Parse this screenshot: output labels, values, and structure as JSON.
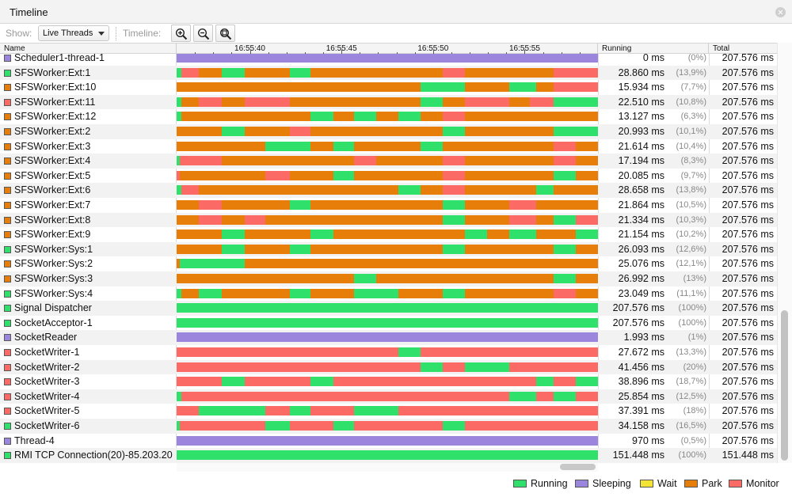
{
  "window": {
    "title": "Timeline"
  },
  "toolbar": {
    "show_label": "Show:",
    "show_value": "Live Threads",
    "timeline_label": "Timeline:"
  },
  "colors": {
    "Running": "#2fe06a",
    "Sleeping": "#9b85dd",
    "Wait": "#f2e335",
    "Park": "#e77e09",
    "Monitor": "#fb6a65"
  },
  "columns": {
    "name": "Name",
    "running": "Running",
    "total": "Total"
  },
  "timeline": {
    "start": 36,
    "end": 59,
    "ticks": [
      {
        "label": "16:55:40",
        "time": 40
      },
      {
        "label": "16:55:45",
        "time": 45
      },
      {
        "label": "16:55:50",
        "time": 50
      },
      {
        "label": "16:55:55",
        "time": 55
      }
    ]
  },
  "threads": [
    {
      "name": "Scheduler1-thread-1",
      "state": "Sleeping",
      "running": "0 ms",
      "pct": "(0%)",
      "total": "207.576 ms",
      "segments": [
        [
          "Sleeping",
          0,
          1
        ]
      ]
    },
    {
      "name": "SFSWorker:Ext:1",
      "state": "Running",
      "running": "28.860 ms",
      "pct": "(13,9%)",
      "total": "207.576 ms",
      "segments": [
        [
          "Running",
          0,
          0.011
        ],
        [
          "Monitor",
          0.011,
          0.053
        ],
        [
          "Park",
          0.053,
          0.107
        ],
        [
          "Running",
          0.107,
          0.161
        ],
        [
          "Park",
          0.161,
          0.268
        ],
        [
          "Running",
          0.268,
          0.318
        ],
        [
          "Park",
          0.318,
          0.632
        ],
        [
          "Monitor",
          0.632,
          0.685
        ],
        [
          "Park",
          0.685,
          0.895
        ],
        [
          "Monitor",
          0.895,
          1
        ]
      ]
    },
    {
      "name": "SFSWorker:Ext:10",
      "state": "Park",
      "running": "15.934 ms",
      "pct": "(7,7%)",
      "total": "207.576 ms",
      "segments": [
        [
          "Park",
          0,
          0.579
        ],
        [
          "Running",
          0.579,
          0.685
        ],
        [
          "Park",
          0.685,
          0.79
        ],
        [
          "Running",
          0.79,
          0.853
        ],
        [
          "Park",
          0.853,
          0.895
        ],
        [
          "Monitor",
          0.895,
          1
        ]
      ]
    },
    {
      "name": "SFSWorker:Ext:11",
      "state": "Monitor",
      "running": "22.510 ms",
      "pct": "(10,8%)",
      "total": "207.576 ms",
      "segments": [
        [
          "Running",
          0,
          0.011
        ],
        [
          "Park",
          0.011,
          0.053
        ],
        [
          "Monitor",
          0.053,
          0.107
        ],
        [
          "Park",
          0.107,
          0.161
        ],
        [
          "Monitor",
          0.161,
          0.268
        ],
        [
          "Park",
          0.268,
          0.579
        ],
        [
          "Running",
          0.579,
          0.632
        ],
        [
          "Park",
          0.632,
          0.685
        ],
        [
          "Monitor",
          0.685,
          0.79
        ],
        [
          "Park",
          0.79,
          0.838
        ],
        [
          "Monitor",
          0.838,
          0.895
        ],
        [
          "Running",
          0.895,
          1
        ]
      ]
    },
    {
      "name": "SFSWorker:Ext:12",
      "state": "Park",
      "running": "13.127 ms",
      "pct": "(6,3%)",
      "total": "207.576 ms",
      "segments": [
        [
          "Running",
          0,
          0.011
        ],
        [
          "Park",
          0.011,
          0.318
        ],
        [
          "Running",
          0.318,
          0.372
        ],
        [
          "Park",
          0.372,
          0.421
        ],
        [
          "Running",
          0.421,
          0.474
        ],
        [
          "Park",
          0.474,
          0.526
        ],
        [
          "Running",
          0.526,
          0.579
        ],
        [
          "Park",
          0.579,
          0.632
        ],
        [
          "Monitor",
          0.632,
          0.685
        ],
        [
          "Park",
          0.685,
          1
        ]
      ]
    },
    {
      "name": "SFSWorker:Ext:2",
      "state": "Park",
      "running": "20.993 ms",
      "pct": "(10,1%)",
      "total": "207.576 ms",
      "segments": [
        [
          "Park",
          0,
          0.107
        ],
        [
          "Running",
          0.107,
          0.161
        ],
        [
          "Park",
          0.161,
          0.268
        ],
        [
          "Monitor",
          0.268,
          0.318
        ],
        [
          "Park",
          0.318,
          0.632
        ],
        [
          "Running",
          0.632,
          0.685
        ],
        [
          "Park",
          0.685,
          0.895
        ],
        [
          "Running",
          0.895,
          1
        ]
      ]
    },
    {
      "name": "SFSWorker:Ext:3",
      "state": "Park",
      "running": "21.614 ms",
      "pct": "(10,4%)",
      "total": "207.576 ms",
      "segments": [
        [
          "Park",
          0,
          0.211
        ],
        [
          "Running",
          0.211,
          0.318
        ],
        [
          "Park",
          0.318,
          0.372
        ],
        [
          "Running",
          0.372,
          0.421
        ],
        [
          "Park",
          0.421,
          0.579
        ],
        [
          "Running",
          0.579,
          0.632
        ],
        [
          "Park",
          0.632,
          0.895
        ],
        [
          "Monitor",
          0.895,
          0.947
        ],
        [
          "Park",
          0.947,
          1
        ]
      ]
    },
    {
      "name": "SFSWorker:Ext:4",
      "state": "Park",
      "running": "17.194 ms",
      "pct": "(8,3%)",
      "total": "207.576 ms",
      "segments": [
        [
          "Running",
          0,
          0.008
        ],
        [
          "Monitor",
          0.008,
          0.107
        ],
        [
          "Park",
          0.107,
          0.421
        ],
        [
          "Monitor",
          0.421,
          0.474
        ],
        [
          "Park",
          0.474,
          0.632
        ],
        [
          "Monitor",
          0.632,
          0.685
        ],
        [
          "Park",
          0.685,
          0.895
        ],
        [
          "Monitor",
          0.895,
          0.947
        ],
        [
          "Park",
          0.947,
          1
        ]
      ]
    },
    {
      "name": "SFSWorker:Ext:5",
      "state": "Park",
      "running": "20.085 ms",
      "pct": "(9,7%)",
      "total": "207.576 ms",
      "segments": [
        [
          "Monitor",
          0,
          0.008
        ],
        [
          "Park",
          0.008,
          0.211
        ],
        [
          "Monitor",
          0.211,
          0.268
        ],
        [
          "Park",
          0.268,
          0.372
        ],
        [
          "Running",
          0.372,
          0.421
        ],
        [
          "Park",
          0.421,
          0.632
        ],
        [
          "Monitor",
          0.632,
          0.685
        ],
        [
          "Park",
          0.685,
          0.895
        ],
        [
          "Running",
          0.895,
          0.947
        ],
        [
          "Park",
          0.947,
          1
        ]
      ]
    },
    {
      "name": "SFSWorker:Ext:6",
      "state": "Park",
      "running": "28.658 ms",
      "pct": "(13,8%)",
      "total": "207.576 ms",
      "segments": [
        [
          "Running",
          0,
          0.011
        ],
        [
          "Monitor",
          0.011,
          0.053
        ],
        [
          "Park",
          0.053,
          0.526
        ],
        [
          "Running",
          0.526,
          0.579
        ],
        [
          "Park",
          0.579,
          0.632
        ],
        [
          "Monitor",
          0.632,
          0.685
        ],
        [
          "Park",
          0.685,
          0.853
        ],
        [
          "Running",
          0.853,
          0.895
        ],
        [
          "Park",
          0.895,
          1
        ]
      ]
    },
    {
      "name": "SFSWorker:Ext:7",
      "state": "Park",
      "running": "21.864 ms",
      "pct": "(10,5%)",
      "total": "207.576 ms",
      "segments": [
        [
          "Park",
          0,
          0.053
        ],
        [
          "Monitor",
          0.053,
          0.107
        ],
        [
          "Park",
          0.107,
          0.268
        ],
        [
          "Running",
          0.268,
          0.318
        ],
        [
          "Park",
          0.318,
          0.632
        ],
        [
          "Running",
          0.632,
          0.685
        ],
        [
          "Park",
          0.685,
          0.79
        ],
        [
          "Monitor",
          0.79,
          0.853
        ],
        [
          "Park",
          0.853,
          1
        ]
      ]
    },
    {
      "name": "SFSWorker:Ext:8",
      "state": "Park",
      "running": "21.334 ms",
      "pct": "(10,3%)",
      "total": "207.576 ms",
      "segments": [
        [
          "Park",
          0,
          0.053
        ],
        [
          "Monitor",
          0.053,
          0.107
        ],
        [
          "Park",
          0.107,
          0.161
        ],
        [
          "Monitor",
          0.161,
          0.211
        ],
        [
          "Park",
          0.211,
          0.632
        ],
        [
          "Running",
          0.632,
          0.685
        ],
        [
          "Park",
          0.685,
          0.79
        ],
        [
          "Monitor",
          0.79,
          0.853
        ],
        [
          "Park",
          0.853,
          0.895
        ],
        [
          "Running",
          0.895,
          0.947
        ],
        [
          "Monitor",
          0.947,
          1
        ]
      ]
    },
    {
      "name": "SFSWorker:Ext:9",
      "state": "Park",
      "running": "21.154 ms",
      "pct": "(10,2%)",
      "total": "207.576 ms",
      "segments": [
        [
          "Park",
          0,
          0.107
        ],
        [
          "Running",
          0.107,
          0.161
        ],
        [
          "Park",
          0.161,
          0.318
        ],
        [
          "Running",
          0.318,
          0.372
        ],
        [
          "Park",
          0.372,
          0.685
        ],
        [
          "Running",
          0.685,
          0.737
        ],
        [
          "Park",
          0.737,
          0.79
        ],
        [
          "Running",
          0.79,
          0.853
        ],
        [
          "Park",
          0.853,
          0.947
        ],
        [
          "Running",
          0.947,
          1
        ]
      ]
    },
    {
      "name": "SFSWorker:Sys:1",
      "state": "Running",
      "running": "26.093 ms",
      "pct": "(12,6%)",
      "total": "207.576 ms",
      "segments": [
        [
          "Park",
          0,
          0.107
        ],
        [
          "Running",
          0.107,
          0.161
        ],
        [
          "Park",
          0.161,
          0.268
        ],
        [
          "Running",
          0.268,
          0.318
        ],
        [
          "Park",
          0.318,
          0.632
        ],
        [
          "Running",
          0.632,
          0.685
        ],
        [
          "Park",
          0.685,
          0.895
        ],
        [
          "Running",
          0.895,
          0.947
        ],
        [
          "Park",
          0.947,
          1
        ]
      ]
    },
    {
      "name": "SFSWorker:Sys:2",
      "state": "Park",
      "running": "25.076 ms",
      "pct": "(12,1%)",
      "total": "207.576 ms",
      "segments": [
        [
          "Park",
          0,
          0.008
        ],
        [
          "Running",
          0.008,
          0.161
        ],
        [
          "Park",
          0.161,
          1
        ]
      ]
    },
    {
      "name": "SFSWorker:Sys:3",
      "state": "Park",
      "running": "26.992 ms",
      "pct": "(13%)",
      "total": "207.576 ms",
      "segments": [
        [
          "Park",
          0,
          0.421
        ],
        [
          "Running",
          0.421,
          0.474
        ],
        [
          "Park",
          0.474,
          0.895
        ],
        [
          "Running",
          0.895,
          0.947
        ],
        [
          "Park",
          0.947,
          1
        ]
      ]
    },
    {
      "name": "SFSWorker:Sys:4",
      "state": "Running",
      "running": "23.049 ms",
      "pct": "(11,1%)",
      "total": "207.576 ms",
      "segments": [
        [
          "Running",
          0,
          0.011
        ],
        [
          "Park",
          0.011,
          0.053
        ],
        [
          "Running",
          0.053,
          0.107
        ],
        [
          "Park",
          0.107,
          0.268
        ],
        [
          "Running",
          0.268,
          0.318
        ],
        [
          "Park",
          0.318,
          0.421
        ],
        [
          "Running",
          0.421,
          0.526
        ],
        [
          "Park",
          0.526,
          0.632
        ],
        [
          "Running",
          0.632,
          0.685
        ],
        [
          "Park",
          0.685,
          0.895
        ],
        [
          "Monitor",
          0.895,
          0.947
        ],
        [
          "Park",
          0.947,
          1
        ]
      ]
    },
    {
      "name": "Signal Dispatcher",
      "state": "Running",
      "running": "207.576 ms",
      "pct": "(100%)",
      "total": "207.576 ms",
      "segments": [
        [
          "Running",
          0,
          1
        ]
      ]
    },
    {
      "name": "SocketAcceptor-1",
      "state": "Running",
      "running": "207.576 ms",
      "pct": "(100%)",
      "total": "207.576 ms",
      "segments": [
        [
          "Running",
          0,
          1
        ]
      ]
    },
    {
      "name": "SocketReader",
      "state": "Sleeping",
      "running": "1.993 ms",
      "pct": "(1%)",
      "total": "207.576 ms",
      "segments": [
        [
          "Sleeping",
          0,
          1
        ]
      ]
    },
    {
      "name": "SocketWriter-1",
      "state": "Monitor",
      "running": "27.672 ms",
      "pct": "(13,3%)",
      "total": "207.576 ms",
      "segments": [
        [
          "Monitor",
          0,
          0.526
        ],
        [
          "Running",
          0.526,
          0.579
        ],
        [
          "Monitor",
          0.579,
          1
        ]
      ]
    },
    {
      "name": "SocketWriter-2",
      "state": "Monitor",
      "running": "41.456 ms",
      "pct": "(20%)",
      "total": "207.576 ms",
      "segments": [
        [
          "Monitor",
          0,
          0.579
        ],
        [
          "Running",
          0.579,
          0.632
        ],
        [
          "Monitor",
          0.632,
          0.685
        ],
        [
          "Running",
          0.685,
          0.79
        ],
        [
          "Monitor",
          0.79,
          1
        ]
      ]
    },
    {
      "name": "SocketWriter-3",
      "state": "Monitor",
      "running": "38.896 ms",
      "pct": "(18,7%)",
      "total": "207.576 ms",
      "segments": [
        [
          "Monitor",
          0,
          0.107
        ],
        [
          "Running",
          0.107,
          0.161
        ],
        [
          "Monitor",
          0.161,
          0.318
        ],
        [
          "Running",
          0.318,
          0.372
        ],
        [
          "Monitor",
          0.372,
          0.853
        ],
        [
          "Running",
          0.853,
          0.895
        ],
        [
          "Monitor",
          0.895,
          0.947
        ],
        [
          "Running",
          0.947,
          1
        ]
      ]
    },
    {
      "name": "SocketWriter-4",
      "state": "Monitor",
      "running": "25.854 ms",
      "pct": "(12,5%)",
      "total": "207.576 ms",
      "segments": [
        [
          "Running",
          0,
          0.011
        ],
        [
          "Monitor",
          0.011,
          0.053
        ],
        [
          "Monitor",
          0.053,
          0.79
        ],
        [
          "Running",
          0.79,
          0.853
        ],
        [
          "Monitor",
          0.853,
          0.895
        ],
        [
          "Running",
          0.895,
          0.947
        ],
        [
          "Monitor",
          0.947,
          1
        ]
      ]
    },
    {
      "name": "SocketWriter-5",
      "state": "Monitor",
      "running": "37.391 ms",
      "pct": "(18%)",
      "total": "207.576 ms",
      "segments": [
        [
          "Monitor",
          0,
          0.053
        ],
        [
          "Running",
          0.053,
          0.211
        ],
        [
          "Monitor",
          0.211,
          0.268
        ],
        [
          "Running",
          0.268,
          0.318
        ],
        [
          "Monitor",
          0.318,
          0.421
        ],
        [
          "Running",
          0.421,
          0.526
        ],
        [
          "Monitor",
          0.526,
          1
        ]
      ]
    },
    {
      "name": "SocketWriter-6",
      "state": "Running",
      "running": "34.158 ms",
      "pct": "(16,5%)",
      "total": "207.576 ms",
      "segments": [
        [
          "Running",
          0,
          0.008
        ],
        [
          "Monitor",
          0.008,
          0.211
        ],
        [
          "Running",
          0.211,
          0.268
        ],
        [
          "Monitor",
          0.268,
          0.372
        ],
        [
          "Running",
          0.372,
          0.421
        ],
        [
          "Monitor",
          0.421,
          0.632
        ],
        [
          "Running",
          0.632,
          0.685
        ],
        [
          "Monitor",
          0.685,
          1
        ]
      ]
    },
    {
      "name": "Thread-4",
      "state": "Sleeping",
      "running": "970 ms",
      "pct": "(0,5%)",
      "total": "207.576 ms",
      "segments": [
        [
          "Sleeping",
          0,
          1
        ]
      ]
    },
    {
      "name": "RMI TCP Connection(20)-85.203.20",
      "state": "Running",
      "running": "151.448 ms",
      "pct": "(100%)",
      "total": "151.448 ms",
      "segments": [
        [
          "Running",
          0,
          0.005
        ],
        [
          "Running",
          0.005,
          1
        ]
      ]
    }
  ],
  "legend": [
    {
      "label": "Running",
      "state": "Running"
    },
    {
      "label": "Sleeping",
      "state": "Sleeping"
    },
    {
      "label": "Wait",
      "state": "Wait"
    },
    {
      "label": "Park",
      "state": "Park"
    },
    {
      "label": "Monitor",
      "state": "Monitor"
    }
  ]
}
